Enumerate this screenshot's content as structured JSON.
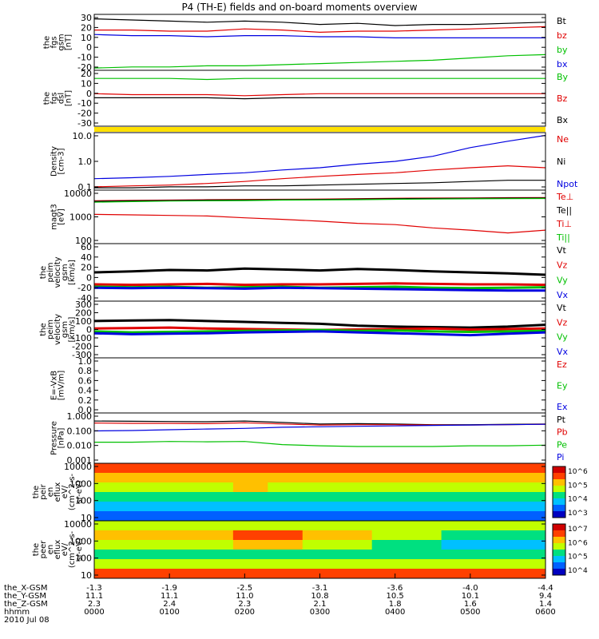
{
  "title": "P4 (TH-E) fields and on-board moments overview",
  "chart_data": [
    {
      "type": "line",
      "panel_id": "fgs-gsm",
      "ylabel": "the\nfgs\ngsm\n[nT]",
      "yticks": [
        "30",
        "20",
        "10",
        "0",
        "-10",
        "-20"
      ],
      "ylim": [
        -20,
        30
      ],
      "legend": [
        "Bt",
        "bz",
        "by",
        "bx"
      ],
      "legend_colors": [
        "#000000",
        "#e00000",
        "#00c000",
        "#0000e0"
      ],
      "series": [
        {
          "name": "Bt",
          "color": "#000000",
          "values": [
            26,
            25,
            24,
            23,
            24,
            23,
            21,
            22,
            20,
            21,
            21,
            22,
            23
          ]
        },
        {
          "name": "bz",
          "color": "#e00000",
          "values": [
            16,
            16,
            15,
            15,
            17,
            16,
            14,
            15,
            15,
            16,
            17,
            18,
            19
          ]
        },
        {
          "name": "bx",
          "color": "#0000e0",
          "values": [
            12,
            11,
            11,
            10,
            11,
            11,
            10,
            10,
            9,
            9,
            9,
            9,
            9
          ]
        },
        {
          "name": "by",
          "color": "#00c000",
          "values": [
            -18,
            -17,
            -17,
            -16,
            -16,
            -15,
            -14,
            -13,
            -12,
            -11,
            -9,
            -7,
            -6
          ]
        }
      ]
    },
    {
      "type": "line",
      "panel_id": "fgs-dsl",
      "ylabel": "the\nfgs\ndsl\n[nT]",
      "yticks": [
        "20",
        "10",
        "0",
        "-10",
        "-20",
        "-30"
      ],
      "ylim": [
        -35,
        20
      ],
      "legend": [
        "By",
        "Bz",
        "Bx"
      ],
      "legend_colors": [
        "#00c000",
        "#e00000",
        "#000000"
      ],
      "series": [
        {
          "name": "By",
          "color": "#00c000",
          "values": [
            12,
            12,
            12,
            11,
            12,
            12,
            12,
            12,
            12,
            12,
            12,
            12,
            12
          ]
        },
        {
          "name": "Bz",
          "color": "#e00000",
          "values": [
            -3,
            -4,
            -4,
            -4,
            -5,
            -4,
            -3,
            -3,
            -3,
            -3,
            -3,
            -3,
            -3
          ]
        },
        {
          "name": "Bx",
          "color": "#000000",
          "values": [
            -7,
            -7,
            -7,
            -7,
            -8,
            -7,
            -7,
            -7,
            -7,
            -7,
            -7,
            -7,
            -7
          ]
        }
      ]
    },
    {
      "type": "line",
      "panel_id": "density",
      "ylabel": "Density\n[cm-3]",
      "yticks": [
        "10.0",
        "1.0",
        "0.1"
      ],
      "ylim": [
        0.1,
        10
      ],
      "yscale": "log",
      "legend": [
        "Ne",
        "Ni",
        "Npot"
      ],
      "legend_colors": [
        "#e00000",
        "#000000",
        "#0000e0"
      ],
      "series": [
        {
          "name": "Npot",
          "color": "#0000e0",
          "values": [
            0.25,
            0.27,
            0.3,
            0.35,
            0.4,
            0.5,
            0.6,
            0.8,
            1.0,
            1.5,
            3,
            5,
            8
          ]
        },
        {
          "name": "Ne",
          "color": "#e00000",
          "values": [
            0.13,
            0.14,
            0.15,
            0.17,
            0.2,
            0.25,
            0.3,
            0.35,
            0.4,
            0.5,
            0.6,
            0.7,
            0.6
          ]
        },
        {
          "name": "Ni",
          "color": "#000000",
          "values": [
            0.12,
            0.12,
            0.13,
            0.13,
            0.14,
            0.14,
            0.15,
            0.16,
            0.17,
            0.18,
            0.2,
            0.22,
            0.22
          ]
        }
      ]
    },
    {
      "type": "line",
      "panel_id": "temperature",
      "ylabel": "magt3\n[eV]",
      "yticks": [
        "10000",
        "1000",
        "100"
      ],
      "ylim": [
        50,
        12000
      ],
      "yscale": "log",
      "legend": [
        "Te⊥",
        "Te||",
        "Ti⊥",
        "Ti||"
      ],
      "legend_colors": [
        "#e00000",
        "#000000",
        "#e00000",
        "#00c000"
      ],
      "series": [
        {
          "name": "Te⊥",
          "color": "#e00000",
          "values": [
            4000,
            4200,
            4300,
            4500,
            4600,
            4700,
            4800,
            5000,
            5200,
            5300,
            5400,
            5500,
            5600
          ]
        },
        {
          "name": "Te||",
          "color": "#000000",
          "values": [
            3800,
            4000,
            4100,
            4300,
            4400,
            4500,
            4600,
            4800,
            5000,
            5100,
            5200,
            5300,
            5400
          ]
        },
        {
          "name": "Ti||",
          "color": "#00c000",
          "values": [
            3500,
            3700,
            3900,
            4000,
            4100,
            4300,
            4400,
            4500,
            4700,
            4800,
            4900,
            5000,
            5100
          ]
        },
        {
          "name": "Ti⊥",
          "color": "#e00000",
          "values": [
            1000,
            950,
            900,
            850,
            700,
            600,
            500,
            400,
            350,
            250,
            200,
            150,
            200
          ]
        }
      ]
    },
    {
      "type": "line",
      "panel_id": "velocity-esa",
      "ylabel": "the\npeim\nvelocity\ngsm\n[km/s]",
      "yticks": [
        "60",
        "40",
        "20",
        "0",
        "-20",
        "-40"
      ],
      "ylim": [
        -40,
        80
      ],
      "legend": [
        "Vt",
        "Vz",
        "Vy",
        "Vx"
      ],
      "legend_colors": [
        "#000000",
        "#e00000",
        "#00c000",
        "#0000e0"
      ],
      "series": [
        {
          "name": "Vt",
          "color": "#000000",
          "values": [
            20,
            22,
            25,
            24,
            28,
            26,
            24,
            27,
            25,
            22,
            20,
            18,
            15
          ]
        },
        {
          "name": "Vz",
          "color": "#e00000",
          "values": [
            -5,
            -6,
            -5,
            -4,
            -6,
            -5,
            -5,
            -4,
            -3,
            -4,
            -5,
            -5,
            -6
          ]
        },
        {
          "name": "Vy",
          "color": "#00c000",
          "values": [
            -10,
            -11,
            -10,
            -12,
            -11,
            -10,
            -12,
            -11,
            -10,
            -12,
            -13,
            -12,
            -11
          ]
        },
        {
          "name": "Vx",
          "color": "#0000e0",
          "values": [
            -12,
            -13,
            -12,
            -13,
            -14,
            -12,
            -13,
            -14,
            -15,
            -16,
            -17,
            -18,
            -18
          ]
        }
      ]
    },
    {
      "type": "line",
      "panel_id": "velocity-esb",
      "ylabel": "the\npeim\nvelocity\ngsm\n[km/s]",
      "yticks": [
        "300",
        "200",
        "100",
        "0",
        "-100",
        "-200",
        "-300"
      ],
      "ylim": [
        -300,
        300
      ],
      "legend": [
        "Vt",
        "Vz",
        "Vy",
        "Vx"
      ],
      "legend_colors": [
        "#000000",
        "#e00000",
        "#00c000",
        "#0000e0"
      ],
      "series": [
        {
          "name": "Vt",
          "color": "#000000",
          "values": [
            90,
            95,
            100,
            90,
            80,
            70,
            60,
            40,
            30,
            25,
            20,
            30,
            50
          ]
        },
        {
          "name": "Vz",
          "color": "#e00000",
          "values": [
            10,
            15,
            20,
            10,
            5,
            0,
            -5,
            0,
            5,
            10,
            0,
            5,
            10
          ]
        },
        {
          "name": "Vy",
          "color": "#00c000",
          "values": [
            -20,
            -30,
            -25,
            -20,
            -15,
            -10,
            -5,
            -15,
            -10,
            -20,
            -25,
            -20,
            -15
          ]
        },
        {
          "name": "Vx",
          "color": "#0000e0",
          "values": [
            -40,
            -50,
            -45,
            -40,
            -30,
            -25,
            -20,
            -30,
            -40,
            -50,
            -60,
            -45,
            -30
          ]
        }
      ]
    },
    {
      "type": "line",
      "panel_id": "e-vxb",
      "ylabel": "E=-VxB\n[mV/m]",
      "yticks": [
        "1.0",
        "0.8",
        "0.6",
        "0.4",
        "0.2",
        "0.0"
      ],
      "ylim": [
        0,
        1
      ],
      "legend": [
        "Ez",
        "Ey",
        "Ex"
      ],
      "legend_colors": [
        "#e00000",
        "#00c000",
        "#0000e0"
      ],
      "series": []
    },
    {
      "type": "line",
      "panel_id": "pressure",
      "ylabel": "Pressure\n[nPa]",
      "yticks": [
        "1.000",
        "0.100",
        "0.010",
        "0.001"
      ],
      "ylim": [
        0.001,
        1
      ],
      "yscale": "log",
      "legend": [
        "Pt",
        "Pb",
        "Pe",
        "Pi"
      ],
      "legend_colors": [
        "#000000",
        "#e00000",
        "#00c000",
        "#0000e0"
      ],
      "series": [
        {
          "name": "Pt",
          "color": "#000000",
          "values": [
            0.33,
            0.32,
            0.31,
            0.3,
            0.33,
            0.27,
            0.22,
            0.23,
            0.22,
            0.2,
            0.2,
            0.21,
            0.22
          ]
        },
        {
          "name": "Pb",
          "color": "#e00000",
          "values": [
            0.25,
            0.24,
            0.24,
            0.23,
            0.26,
            0.22,
            0.19,
            0.2,
            0.2,
            0.19,
            0.19,
            0.2,
            0.21
          ]
        },
        {
          "name": "Pi",
          "color": "#0000e0",
          "values": [
            0.085,
            0.09,
            0.1,
            0.11,
            0.12,
            0.14,
            0.15,
            0.16,
            0.17,
            0.18,
            0.19,
            0.2,
            0.21
          ]
        },
        {
          "name": "Pe",
          "color": "#00c000",
          "values": [
            0.018,
            0.018,
            0.02,
            0.019,
            0.02,
            0.013,
            0.011,
            0.01,
            0.01,
            0.01,
            0.011,
            0.011,
            0.012
          ]
        }
      ]
    },
    {
      "type": "heatmap",
      "panel_id": "ion-spectrogram",
      "ylabel": "the\npeir\nen\neflux\neV/\n(cm^2-s-\nsr-eV)",
      "yticks": [
        "10000",
        "1000",
        "100",
        "10"
      ],
      "ylim": [
        5,
        25000
      ],
      "yscale": "log",
      "colorbar_ticks": [
        "10^6",
        "10^5",
        "10^4",
        "10^3"
      ],
      "rows": [
        [
          6,
          6,
          6,
          6,
          6,
          6,
          6,
          6,
          6,
          6,
          6,
          6,
          6
        ],
        [
          5,
          5,
          5,
          5,
          5,
          5,
          5,
          5,
          5,
          5,
          5,
          5,
          5
        ],
        [
          4,
          4,
          4,
          4,
          5,
          4,
          4,
          4,
          4,
          4,
          4,
          4,
          4
        ],
        [
          3,
          3,
          3,
          3,
          3,
          3,
          3,
          3,
          3,
          3,
          3,
          3,
          3
        ],
        [
          2,
          2,
          2,
          2,
          2,
          2,
          2,
          2,
          2,
          2,
          2,
          2,
          2
        ],
        [
          1,
          1,
          1,
          1,
          1,
          1,
          1,
          1,
          1,
          1,
          1,
          1,
          1
        ]
      ]
    },
    {
      "type": "heatmap",
      "panel_id": "electron-spectrogram",
      "ylabel": "the\npeer\nen\neflux\neV/\n(cm^2-s-\nsr-eV)",
      "yticks": [
        "10000",
        "1000",
        "100",
        "10"
      ],
      "ylim": [
        5,
        25000
      ],
      "yscale": "log",
      "colorbar_ticks": [
        "10^7",
        "10^6",
        "10^5",
        "10^4"
      ],
      "rows": [
        [
          4,
          4,
          4,
          4,
          4,
          4,
          4,
          4,
          4,
          4,
          4,
          4,
          4
        ],
        [
          5,
          5,
          5,
          5,
          6,
          6,
          5,
          5,
          4,
          4,
          3,
          3,
          3
        ],
        [
          4,
          4,
          4,
          4,
          5,
          5,
          4,
          4,
          3,
          3,
          2,
          2,
          2
        ],
        [
          3,
          3,
          3,
          3,
          3,
          3,
          3,
          3,
          3,
          3,
          3,
          3,
          3
        ],
        [
          4,
          4,
          4,
          4,
          4,
          4,
          4,
          4,
          4,
          4,
          4,
          4,
          4
        ],
        [
          6,
          6,
          6,
          6,
          6,
          6,
          6,
          6,
          6,
          6,
          6,
          6,
          6
        ]
      ]
    }
  ],
  "xaxis": {
    "rows": [
      {
        "label": "the_X-GSM",
        "values": [
          "-1.3",
          "-1.9",
          "-2.5",
          "-3.1",
          "-3.6",
          "-4.0",
          "-4.4"
        ]
      },
      {
        "label": "the_Y-GSM",
        "values": [
          "11.1",
          "11.1",
          "11.0",
          "10.8",
          "10.5",
          "10.1",
          "9.4"
        ]
      },
      {
        "label": "the_Z-GSM",
        "values": [
          "2.3",
          "2.4",
          "2.3",
          "2.1",
          "1.8",
          "1.6",
          "1.4"
        ]
      },
      {
        "label": "hhmm",
        "values": [
          "0000",
          "0100",
          "0200",
          "0300",
          "0400",
          "0500",
          "0600"
        ]
      }
    ],
    "date": "2010 Jul 08"
  }
}
